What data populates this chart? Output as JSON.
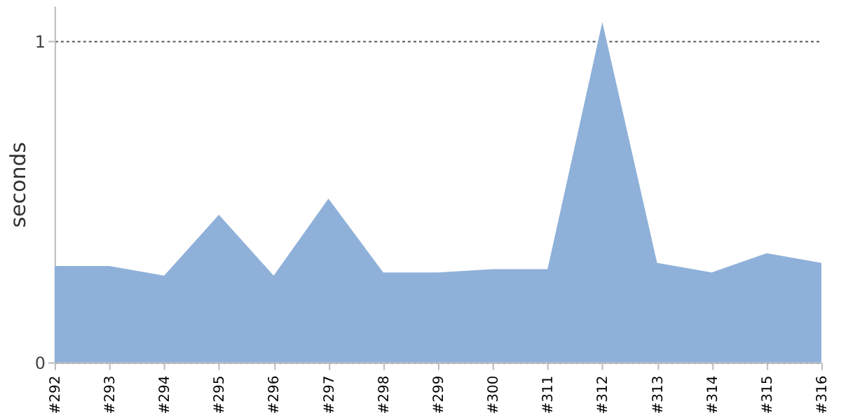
{
  "chart_data": {
    "type": "area",
    "ylabel": "seconds",
    "categories": [
      "#292",
      "#293",
      "#294",
      "#295",
      "#296",
      "#297",
      "#298",
      "#299",
      "#300",
      "#311",
      "#312",
      "#313",
      "#314",
      "#315",
      "#316"
    ],
    "series": [
      {
        "color": "#8fb1d9",
        "values": [
          0.3,
          0.3,
          0.27,
          0.46,
          0.27,
          0.51,
          0.28,
          0.28,
          0.29,
          0.29,
          1.06,
          0.31,
          0.28,
          0.34,
          0.31
        ]
      }
    ],
    "ylim": [
      0,
      1.11
    ],
    "yticks": [
      0,
      1
    ],
    "grid": "y"
  }
}
